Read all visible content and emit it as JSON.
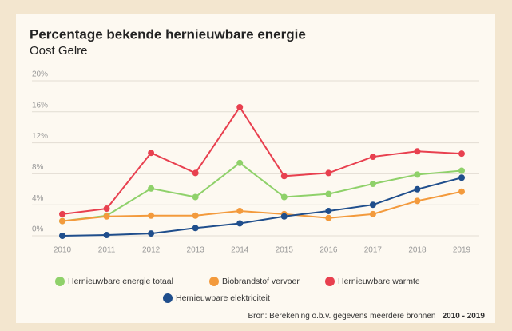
{
  "chart_data": {
    "type": "line",
    "title": "Percentage bekende hernieuwbare energie",
    "subtitle": "Oost Gelre",
    "x": [
      2010,
      2011,
      2012,
      2013,
      2014,
      2015,
      2016,
      2017,
      2018,
      2019
    ],
    "xlim": [
      2010,
      2019
    ],
    "ylim": [
      0,
      20
    ],
    "yticks": [
      {
        "value": 0,
        "label": "0%"
      },
      {
        "value": 4,
        "label": "4%"
      },
      {
        "value": 8,
        "label": "8%"
      },
      {
        "value": 12,
        "label": "12%"
      },
      {
        "value": 16,
        "label": "16%"
      },
      {
        "value": 20,
        "label": "20%"
      }
    ],
    "grid": true,
    "series": [
      {
        "name": "Hernieuwbare energie totaal",
        "color": "#8fd16a",
        "values": [
          1.9,
          2.6,
          6.1,
          5.0,
          9.4,
          5.0,
          5.4,
          6.7,
          7.9,
          8.4
        ]
      },
      {
        "name": "Biobrandstof vervoer",
        "color": "#f39a3c",
        "values": [
          1.9,
          2.5,
          2.6,
          2.6,
          3.2,
          2.8,
          2.3,
          2.8,
          4.5,
          5.7
        ]
      },
      {
        "name": "Hernieuwbare warmte",
        "color": "#e8404f",
        "values": [
          2.8,
          3.5,
          10.7,
          8.1,
          16.6,
          7.7,
          8.1,
          10.2,
          10.9,
          10.6
        ]
      },
      {
        "name": "Hernieuwbare elektriciteit",
        "color": "#1f4e8c",
        "values": [
          0,
          0.1,
          0.3,
          1.0,
          1.6,
          2.5,
          3.2,
          4.0,
          6.0,
          7.5
        ]
      }
    ],
    "source": "Bron: Berekening o.b.v. gegevens meerdere bronnen |",
    "source_period": "2010 - 2019"
  }
}
